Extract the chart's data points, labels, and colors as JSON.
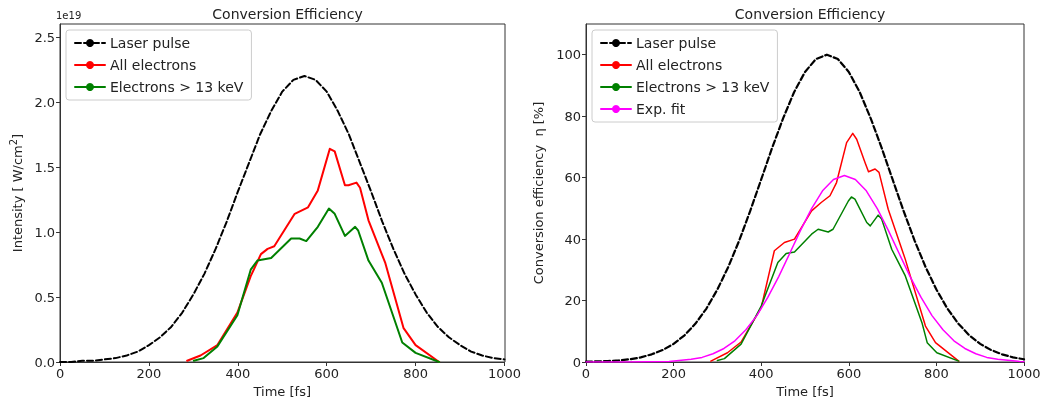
{
  "chart_data": [
    {
      "type": "line",
      "title": "Conversion Efficiency",
      "xlabel": "Time [fs]",
      "ylabel": "Intensity [ W/cm$^{2}$]",
      "annotations": [
        "1e19"
      ],
      "xlim": [
        0,
        1000
      ],
      "xticks": [
        0,
        200,
        400,
        600,
        800,
        1000
      ],
      "ylim": [
        0,
        2.6
      ],
      "yticks": [
        {
          "value": 0,
          "label": "0.0"
        },
        0.5,
        {
          "value": 1,
          "label": "1.0"
        },
        1.5,
        {
          "value": 2,
          "label": "2.0"
        },
        2.5
      ],
      "grid": false,
      "legend": "top left",
      "marker": "none",
      "series": [
        {
          "name": "Laser pulse",
          "color": "#000000",
          "line_style": "dashed",
          "x": [
            0,
            25,
            50,
            75,
            100,
            125,
            150,
            175,
            200,
            225,
            250,
            275,
            300,
            325,
            350,
            375,
            400,
            425,
            450,
            475,
            500,
            525,
            550,
            575,
            600,
            625,
            650,
            675,
            700,
            725,
            750,
            775,
            800,
            825,
            850,
            875,
            900,
            925,
            950,
            975,
            1000
          ],
          "values": [
            0.0,
            0.0,
            0.01,
            0.01,
            0.02,
            0.03,
            0.05,
            0.08,
            0.13,
            0.19,
            0.27,
            0.38,
            0.52,
            0.68,
            0.87,
            1.08,
            1.31,
            1.53,
            1.75,
            1.93,
            2.08,
            2.17,
            2.2,
            2.17,
            2.08,
            1.93,
            1.75,
            1.53,
            1.31,
            1.08,
            0.87,
            0.68,
            0.52,
            0.38,
            0.27,
            0.19,
            0.13,
            0.08,
            0.05,
            0.03,
            0.02
          ]
        },
        {
          "name": "All electrons",
          "color": "#ff0000",
          "line_style": "solid",
          "x": [
            286,
            316,
            354,
            399,
            429,
            452,
            467,
            482,
            528,
            558,
            580,
            607,
            618,
            641,
            649,
            667,
            675,
            694,
            732,
            773,
            800,
            853
          ],
          "values": [
            0.01,
            0.05,
            0.13,
            0.38,
            0.66,
            0.83,
            0.87,
            0.89,
            1.14,
            1.19,
            1.32,
            1.64,
            1.62,
            1.36,
            1.36,
            1.38,
            1.34,
            1.09,
            0.76,
            0.26,
            0.13,
            0.0
          ]
        },
        {
          "name": "Electrons > 13 keV",
          "color": "#008000",
          "line_style": "solid",
          "x": [
            301,
            323,
            354,
            399,
            429,
            444,
            475,
            520,
            539,
            554,
            580,
            605,
            618,
            641,
            664,
            671,
            694,
            724,
            770,
            800,
            853
          ],
          "values": [
            0.01,
            0.03,
            0.12,
            0.36,
            0.71,
            0.78,
            0.8,
            0.95,
            0.95,
            0.93,
            1.04,
            1.18,
            1.14,
            0.97,
            1.04,
            1.01,
            0.78,
            0.61,
            0.15,
            0.07,
            0.0
          ]
        }
      ]
    },
    {
      "type": "line",
      "title": "Conversion Efficiency",
      "xlabel": "Time [fs]",
      "ylabel": "Conversion efficiency  η [%]",
      "xlim": [
        0,
        1000
      ],
      "xticks": [
        0,
        200,
        400,
        600,
        800,
        1000
      ],
      "ylim": [
        0,
        110
      ],
      "yticks": [
        0,
        20,
        40,
        60,
        80,
        100
      ],
      "grid": false,
      "legend": "top left",
      "marker": "none",
      "series": [
        {
          "name": "Laser pulse",
          "color": "#000000",
          "line_style": "dashed",
          "x": [
            0,
            25,
            50,
            75,
            100,
            125,
            150,
            175,
            200,
            225,
            250,
            275,
            300,
            325,
            350,
            375,
            400,
            425,
            450,
            475,
            500,
            525,
            550,
            575,
            600,
            625,
            650,
            675,
            700,
            725,
            750,
            775,
            800,
            825,
            850,
            875,
            900,
            925,
            950,
            975,
            1000
          ],
          "values": [
            0.1,
            0.2,
            0.3,
            0.5,
            0.9,
            1.5,
            2.5,
            3.9,
            5.9,
            8.7,
            12.5,
            17.4,
            23.6,
            31.0,
            39.6,
            49.2,
            59.4,
            69.7,
            79.3,
            87.8,
            94.4,
            98.6,
            100,
            98.6,
            94.4,
            87.8,
            79.3,
            69.7,
            59.4,
            49.2,
            39.6,
            31.0,
            23.6,
            17.4,
            12.5,
            8.7,
            5.9,
            3.9,
            2.5,
            1.5,
            0.9
          ]
        },
        {
          "name": "All electrons",
          "color": "#ff0000",
          "line_style": "solid",
          "x": [
            285,
            323,
            354,
            400,
            430,
            453,
            476,
            515,
            537,
            557,
            572,
            595,
            609,
            618,
            637,
            645,
            660,
            669,
            690,
            729,
            775,
            798,
            851
          ],
          "values": [
            0.3,
            3.0,
            6.5,
            17.7,
            36.2,
            38.9,
            40.0,
            49.2,
            51.9,
            54.1,
            58.4,
            71.4,
            74.4,
            72.5,
            64.9,
            61.9,
            62.8,
            61.7,
            49.7,
            33.4,
            11.7,
            6.3,
            0.3
          ]
        },
        {
          "name": "Electrons > 13 keV",
          "color": "#008000",
          "line_style": "solid",
          "x": [
            300,
            316,
            354,
            400,
            438,
            457,
            476,
            515,
            530,
            553,
            564,
            599,
            606,
            614,
            641,
            649,
            667,
            675,
            698,
            729,
            767,
            779,
            801,
            851
          ],
          "values": [
            0.5,
            1.1,
            5.8,
            18.2,
            32.4,
            35.3,
            35.8,
            41.6,
            43.2,
            42.3,
            43.2,
            52.4,
            53.7,
            53.0,
            45.4,
            44.3,
            47.8,
            46.5,
            36.7,
            28.0,
            12.8,
            6.3,
            3.0,
            0.3
          ]
        },
        {
          "name": "Exp. fit",
          "color": "#ff00ff",
          "line_style": "solid",
          "x": [
            0,
            90,
            190,
            240,
            265,
            290,
            315,
            340,
            365,
            390,
            415,
            440,
            465,
            490,
            515,
            540,
            565,
            590,
            615,
            640,
            665,
            690,
            715,
            740,
            765,
            790,
            815,
            840,
            865,
            890,
            915,
            940,
            990,
            1000
          ],
          "values": [
            0.0,
            0.0,
            0.2,
            0.9,
            1.5,
            2.7,
            4.4,
            6.9,
            10.5,
            15.1,
            21.0,
            27.8,
            35.3,
            42.9,
            49.9,
            55.7,
            59.4,
            60.7,
            59.4,
            55.7,
            49.9,
            42.9,
            35.3,
            27.8,
            21.0,
            15.1,
            10.5,
            6.9,
            4.4,
            2.7,
            1.5,
            0.9,
            0.2,
            0.1
          ]
        }
      ]
    }
  ]
}
